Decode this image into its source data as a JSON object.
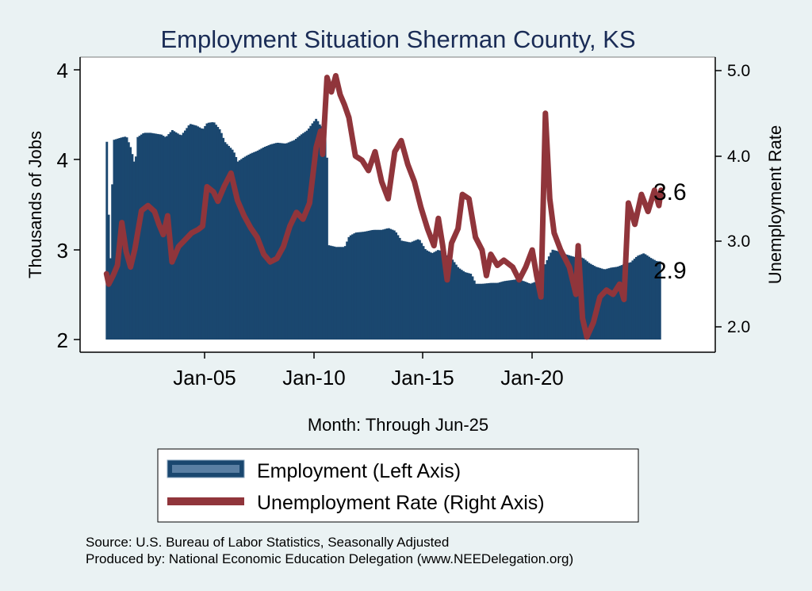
{
  "chart_data": {
    "type": "bar+line",
    "title": "Employment Situation Sherman  County, KS",
    "xlabel": "Month: Through Jun-25",
    "ylabel_left": "Thousands of Jobs",
    "ylabel_right": "Unemployment Rate",
    "x_ticks": [
      "Jan-05",
      "Jan-10",
      "Jan-15",
      "Jan-20"
    ],
    "y_left_ticks": [
      "2",
      "3",
      "4",
      "4"
    ],
    "y_right_ticks": [
      "2.0",
      "3.0",
      "4.0",
      "5.0"
    ],
    "y_right_lim": [
      1.85,
      5.05
    ],
    "start_year": 2000,
    "end_label_employment": "2.9",
    "end_label_unemployment": "3.6",
    "employment_points": [
      [
        2000.0,
        4.2
      ],
      [
        2000.15,
        2.74
      ],
      [
        2000.3,
        4.22
      ],
      [
        2000.7,
        4.25
      ],
      [
        2000.9,
        4.26
      ],
      [
        2001.1,
        4.13
      ],
      [
        2001.3,
        3.93
      ],
      [
        2001.4,
        4.25
      ],
      [
        2001.7,
        4.3
      ],
      [
        2002.0,
        4.3
      ],
      [
        2002.5,
        4.28
      ],
      [
        2002.7,
        4.25
      ],
      [
        2003.0,
        4.33
      ],
      [
        2003.2,
        4.3
      ],
      [
        2003.4,
        4.27
      ],
      [
        2003.6,
        4.33
      ],
      [
        2003.8,
        4.4
      ],
      [
        2004.1,
        4.38
      ],
      [
        2004.4,
        4.34
      ],
      [
        2004.6,
        4.41
      ],
      [
        2004.9,
        4.42
      ],
      [
        2005.2,
        4.33
      ],
      [
        2005.4,
        4.2
      ],
      [
        2005.6,
        4.15
      ],
      [
        2005.8,
        4.1
      ],
      [
        2006.0,
        3.98
      ],
      [
        2006.3,
        4.03
      ],
      [
        2006.6,
        4.07
      ],
      [
        2006.9,
        4.1
      ],
      [
        2007.2,
        4.14
      ],
      [
        2007.5,
        4.17
      ],
      [
        2007.8,
        4.19
      ],
      [
        2008.2,
        4.18
      ],
      [
        2008.6,
        4.22
      ],
      [
        2008.9,
        4.28
      ],
      [
        2009.2,
        4.33
      ],
      [
        2009.4,
        4.4
      ],
      [
        2009.6,
        4.46
      ],
      [
        2009.8,
        4.37
      ],
      [
        2010.0,
        4.39
      ],
      [
        2010.1,
        3.95
      ],
      [
        2010.15,
        3.05
      ],
      [
        2010.5,
        3.03
      ],
      [
        2010.9,
        3.03
      ],
      [
        2011.1,
        3.15
      ],
      [
        2011.4,
        3.19
      ],
      [
        2011.8,
        3.2
      ],
      [
        2012.2,
        3.22
      ],
      [
        2012.6,
        3.22
      ],
      [
        2012.9,
        3.24
      ],
      [
        2013.2,
        3.21
      ],
      [
        2013.5,
        3.1
      ],
      [
        2013.9,
        3.08
      ],
      [
        2014.3,
        3.12
      ],
      [
        2014.6,
        3.0
      ],
      [
        2014.9,
        2.96
      ],
      [
        2015.2,
        3.0
      ],
      [
        2015.5,
        2.95
      ],
      [
        2015.8,
        2.9
      ],
      [
        2016.1,
        2.8
      ],
      [
        2016.4,
        2.75
      ],
      [
        2016.7,
        2.73
      ],
      [
        2016.9,
        2.62
      ],
      [
        2017.2,
        2.62
      ],
      [
        2017.6,
        2.63
      ],
      [
        2017.9,
        2.63
      ],
      [
        2018.2,
        2.65
      ],
      [
        2018.5,
        2.66
      ],
      [
        2018.8,
        2.67
      ],
      [
        2019.1,
        2.65
      ],
      [
        2019.4,
        2.62
      ],
      [
        2019.7,
        2.65
      ],
      [
        2019.9,
        2.7
      ],
      [
        2020.1,
        2.85
      ],
      [
        2020.4,
        3.0
      ],
      [
        2020.7,
        2.98
      ],
      [
        2021.0,
        2.95
      ],
      [
        2021.4,
        2.92
      ],
      [
        2021.8,
        2.91
      ],
      [
        2022.1,
        2.85
      ],
      [
        2022.4,
        2.81
      ],
      [
        2022.8,
        2.78
      ],
      [
        2023.1,
        2.8
      ],
      [
        2023.4,
        2.81
      ],
      [
        2023.7,
        2.84
      ],
      [
        2024.0,
        2.86
      ],
      [
        2024.3,
        2.93
      ],
      [
        2024.6,
        2.96
      ],
      [
        2024.9,
        2.91
      ],
      [
        2025.2,
        2.87
      ],
      [
        2025.4,
        2.87
      ]
    ],
    "unemployment_points": [
      [
        2000.0,
        2.62
      ],
      [
        2000.1,
        2.5
      ],
      [
        2000.3,
        2.6
      ],
      [
        2000.5,
        2.72
      ],
      [
        2000.7,
        3.22
      ],
      [
        2000.9,
        2.88
      ],
      [
        2001.1,
        2.7
      ],
      [
        2001.3,
        2.91
      ],
      [
        2001.6,
        3.36
      ],
      [
        2001.9,
        3.42
      ],
      [
        2002.2,
        3.35
      ],
      [
        2002.4,
        3.2
      ],
      [
        2002.6,
        3.08
      ],
      [
        2002.8,
        3.3
      ],
      [
        2003.0,
        2.76
      ],
      [
        2003.3,
        2.94
      ],
      [
        2003.6,
        3.02
      ],
      [
        2003.9,
        3.1
      ],
      [
        2004.2,
        3.14
      ],
      [
        2004.4,
        3.18
      ],
      [
        2004.6,
        3.64
      ],
      [
        2004.9,
        3.58
      ],
      [
        2005.1,
        3.47
      ],
      [
        2005.4,
        3.65
      ],
      [
        2005.7,
        3.8
      ],
      [
        2006.0,
        3.48
      ],
      [
        2006.3,
        3.3
      ],
      [
        2006.6,
        3.16
      ],
      [
        2006.9,
        3.05
      ],
      [
        2007.2,
        2.85
      ],
      [
        2007.5,
        2.76
      ],
      [
        2007.8,
        2.8
      ],
      [
        2008.1,
        2.94
      ],
      [
        2008.4,
        3.18
      ],
      [
        2008.7,
        3.34
      ],
      [
        2009.0,
        3.26
      ],
      [
        2009.3,
        3.45
      ],
      [
        2009.6,
        4.1
      ],
      [
        2009.8,
        4.29
      ],
      [
        2009.9,
        4.02
      ],
      [
        2010.1,
        4.92
      ],
      [
        2010.3,
        4.75
      ],
      [
        2010.5,
        4.94
      ],
      [
        2010.7,
        4.72
      ],
      [
        2010.9,
        4.6
      ],
      [
        2011.1,
        4.45
      ],
      [
        2011.4,
        4.0
      ],
      [
        2011.7,
        3.95
      ],
      [
        2012.0,
        3.83
      ],
      [
        2012.3,
        4.05
      ],
      [
        2012.6,
        3.7
      ],
      [
        2012.9,
        3.5
      ],
      [
        2013.2,
        4.05
      ],
      [
        2013.5,
        4.18
      ],
      [
        2013.8,
        3.9
      ],
      [
        2014.1,
        3.7
      ],
      [
        2014.4,
        3.4
      ],
      [
        2014.7,
        3.15
      ],
      [
        2015.0,
        2.95
      ],
      [
        2015.2,
        3.27
      ],
      [
        2015.4,
        2.95
      ],
      [
        2015.6,
        2.55
      ],
      [
        2015.8,
        2.98
      ],
      [
        2016.1,
        3.15
      ],
      [
        2016.3,
        3.55
      ],
      [
        2016.6,
        3.5
      ],
      [
        2016.9,
        3.05
      ],
      [
        2017.2,
        2.9
      ],
      [
        2017.4,
        2.6
      ],
      [
        2017.6,
        2.85
      ],
      [
        2017.9,
        2.72
      ],
      [
        2018.2,
        2.78
      ],
      [
        2018.6,
        2.7
      ],
      [
        2018.9,
        2.55
      ],
      [
        2019.2,
        2.7
      ],
      [
        2019.5,
        2.9
      ],
      [
        2019.7,
        2.6
      ],
      [
        2019.9,
        2.35
      ],
      [
        2020.1,
        4.5
      ],
      [
        2020.3,
        3.5
      ],
      [
        2020.5,
        3.1
      ],
      [
        2020.8,
        2.9
      ],
      [
        2021.2,
        2.7
      ],
      [
        2021.5,
        2.38
      ],
      [
        2021.6,
        2.95
      ],
      [
        2021.8,
        2.1
      ],
      [
        2022.0,
        1.88
      ],
      [
        2022.3,
        2.05
      ],
      [
        2022.6,
        2.35
      ],
      [
        2022.9,
        2.43
      ],
      [
        2023.2,
        2.38
      ],
      [
        2023.5,
        2.5
      ],
      [
        2023.7,
        2.32
      ],
      [
        2023.9,
        3.45
      ],
      [
        2024.2,
        3.2
      ],
      [
        2024.5,
        3.55
      ],
      [
        2024.8,
        3.35
      ],
      [
        2025.1,
        3.6
      ],
      [
        2025.3,
        3.42
      ],
      [
        2025.4,
        3.6
      ]
    ],
    "legend": [
      {
        "label": "Employment (Left Axis)",
        "color": "#1a476f"
      },
      {
        "label": "Unemployment Rate (Right Axis)",
        "color": "#90353b"
      }
    ],
    "source_lines": [
      "Source: U.S. Bureau of Labor Statistics, Seasonally Adjusted",
      "Produced by: National Economic Education Delegation (www.NEEDelegation.org)"
    ]
  },
  "colors": {
    "background": "#eaf2f3",
    "plot_background": "#ffffff",
    "employment": "#1a476f",
    "unemployment": "#90353b",
    "title": "#1a2c56"
  }
}
